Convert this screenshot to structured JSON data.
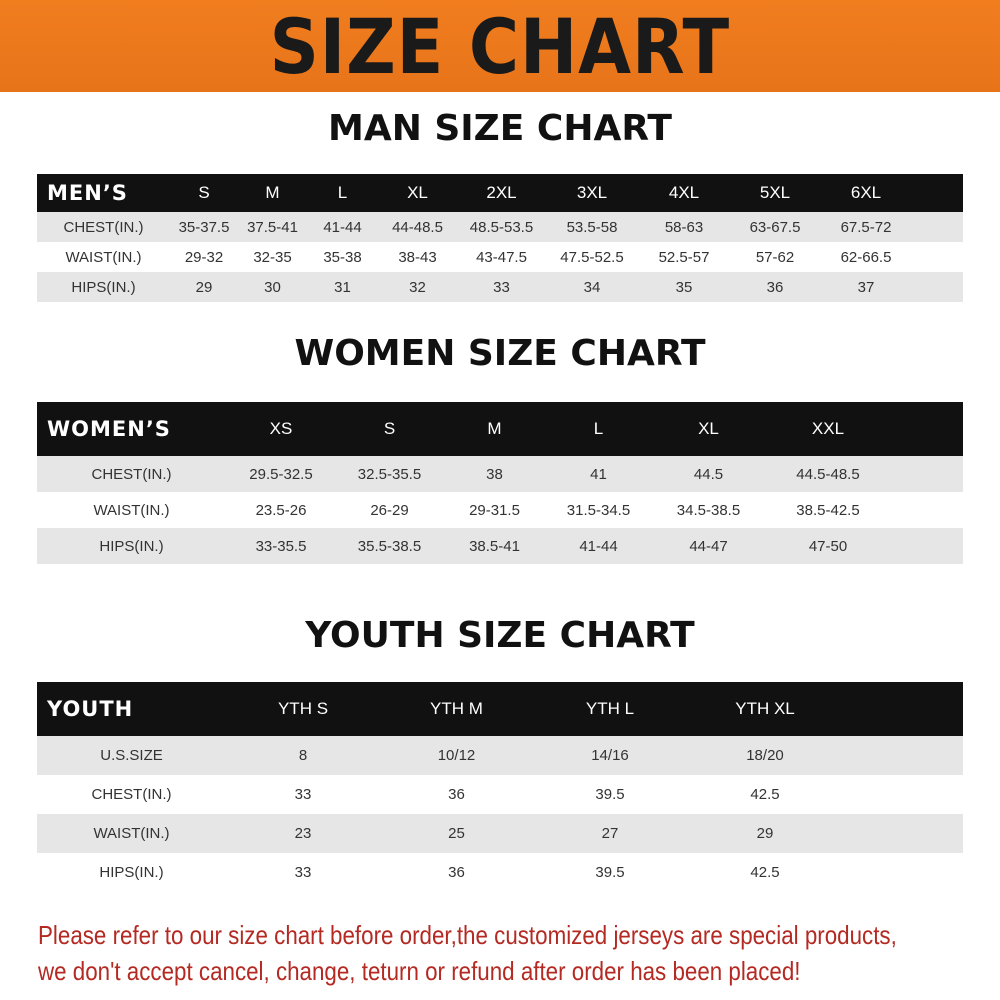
{
  "banner": "SIZE CHART",
  "men": {
    "title": "MAN SIZE CHART",
    "header": [
      "MEN’S",
      "S",
      "M",
      "L",
      "XL",
      "2XL",
      "3XL",
      "4XL",
      "5XL",
      "6XL"
    ],
    "rows": [
      [
        "CHEST(IN.)",
        "35-37.5",
        "37.5-41",
        "41-44",
        "44-48.5",
        "48.5-53.5",
        "53.5-58",
        "58-63",
        "63-67.5",
        "67.5-72"
      ],
      [
        "WAIST(IN.)",
        "29-32",
        "32-35",
        "35-38",
        "38-43",
        "43-47.5",
        "47.5-52.5",
        "52.5-57",
        "57-62",
        "62-66.5"
      ],
      [
        "HIPS(IN.)",
        "29",
        "30",
        "31",
        "32",
        "33",
        "34",
        "35",
        "36",
        "37"
      ]
    ]
  },
  "women": {
    "title": "WOMEN SIZE CHART",
    "header": [
      "WOMEN’S",
      "XS",
      "S",
      "M",
      "L",
      "XL",
      "XXL"
    ],
    "rows": [
      [
        "CHEST(IN.)",
        "29.5-32.5",
        "32.5-35.5",
        "38",
        "41",
        "44.5",
        "44.5-48.5"
      ],
      [
        "WAIST(IN.)",
        "23.5-26",
        "26-29",
        "29-31.5",
        "31.5-34.5",
        "34.5-38.5",
        "38.5-42.5"
      ],
      [
        "HIPS(IN.)",
        "33-35.5",
        "35.5-38.5",
        "38.5-41",
        "41-44",
        "44-47",
        "47-50"
      ]
    ]
  },
  "youth": {
    "title": "YOUTH SIZE CHART",
    "header": [
      "YOUTH",
      "YTH S",
      "YTH M",
      "YTH L",
      "YTH XL"
    ],
    "rows": [
      [
        "U.S.SIZE",
        "8",
        "10/12",
        "14/16",
        "18/20"
      ],
      [
        "CHEST(IN.)",
        "33",
        "36",
        "39.5",
        "42.5"
      ],
      [
        "WAIST(IN.)",
        "23",
        "25",
        "27",
        "29"
      ],
      [
        "HIPS(IN.)",
        "33",
        "36",
        "39.5",
        "42.5"
      ]
    ]
  },
  "footer": [
    "Please refer to our size chart before order,the customized jerseys are special products,",
    "we don't accept cancel, change, teturn or refund after order has been placed!"
  ],
  "colors": {
    "banner": "#f07d1e",
    "header_bg": "#111111",
    "row_alt": "#e6e6e6",
    "notice": "#b42a23"
  }
}
